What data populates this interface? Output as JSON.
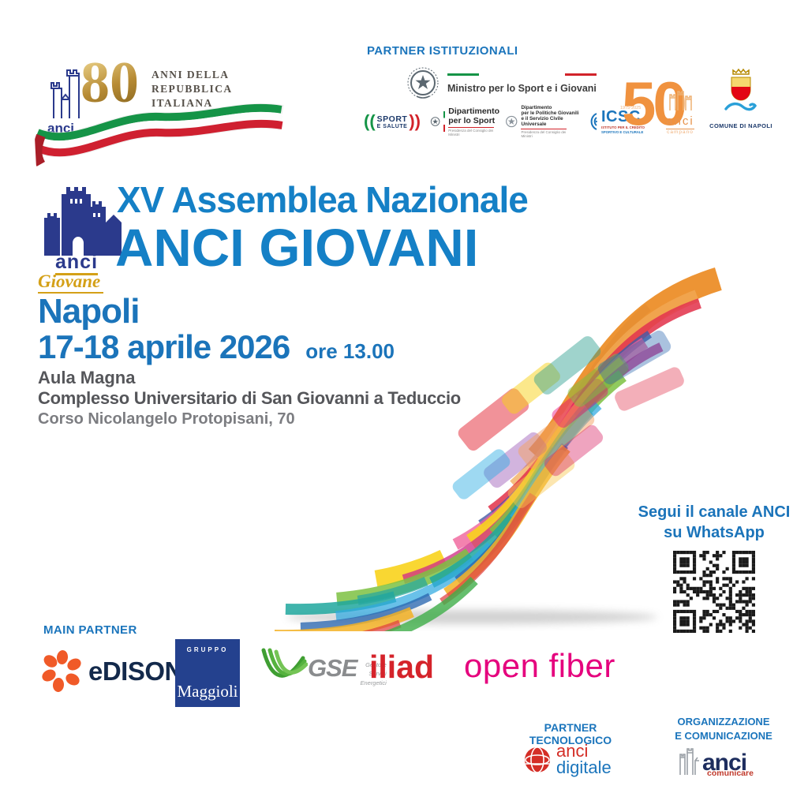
{
  "colors": {
    "accent_blue": "#1b75bc",
    "title_blue": "#1580c6",
    "text_gray": "#55565a",
    "edison_orange": "#f05a28",
    "edison_navy": "#13294b",
    "maggioli_blue": "#24418e",
    "gse_green": "#45a935",
    "iliad_red": "#d5232a",
    "openfiber_magenta": "#e5007d",
    "anci50_orange": "#f0923f",
    "gold": "#d4a017"
  },
  "logo80": {
    "anci": "anci",
    "number": "80",
    "line1": "ANNI DELLA",
    "line2": "REPUBBLICA ITALIANA",
    "years": "1946-2026"
  },
  "institutional": {
    "header": "PARTNER ISTITUZIONALI",
    "ministero": "Ministro per lo Sport e i Giovani",
    "sport_salute_1": "SPORT",
    "sport_salute_2": "E SALUTE",
    "dip_sport_1": "Dipartimento",
    "dip_sport_2": "per lo Sport",
    "dip_sport_sub": "Presidenza del Consiglio dei Ministri",
    "dip_gio_1": "Dipartimento",
    "dip_gio_2": "per le Politiche Giovanili",
    "dip_gio_3": "e il Servizio Civile Universale",
    "dip_gio_sub": "Presidenza del Consiglio dei Ministri",
    "icsc": "ICSC",
    "icsc_sub1": "ISTITUTO PER IL CREDITO",
    "icsc_sub2": "SPORTIVO E CULTURALE",
    "anci50_number": "50",
    "anci50_anci": "anci",
    "anci50_region": "campano",
    "anci50_years": "1975-2025",
    "comune_napoli": "COMUNE DI NAPOLI"
  },
  "event": {
    "logo_anci": "anci",
    "logo_giovane": "Giovane",
    "title1": "XV Assemblea Nazionale",
    "title2": "ANCI GIOVANI",
    "city": "Napoli",
    "date": "17-18 aprile 2026",
    "time": "ore 13.00",
    "venue1": "Aula Magna",
    "venue2": "Complesso Universitario di San Giovanni a Teduccio",
    "venue3": "Corso Nicolangelo Protopisani, 70"
  },
  "whatsapp": {
    "line1": "Segui il canale ANCI",
    "line2": "su WhatsApp"
  },
  "main_partner": {
    "header": "MAIN PARTNER",
    "edison": "eDISON",
    "maggioli_gruppo": "GRUPPO",
    "maggioli": "Maggioli",
    "gse": "GSE",
    "gse_sub1": "Gestore",
    "gse_sub2": "Servizi",
    "gse_sub3": "Energetici",
    "iliad": "iliad",
    "open_fiber": "open fiber"
  },
  "tech_partner": {
    "header": "PARTNER TECNOLOGICO",
    "brand1": "anci",
    "brand2": "digitale"
  },
  "org": {
    "header1": "ORGANIZZAZIONE",
    "header2": "E COMUNICAZIONE",
    "brand": "anci",
    "brand_sub": "comunicare"
  }
}
